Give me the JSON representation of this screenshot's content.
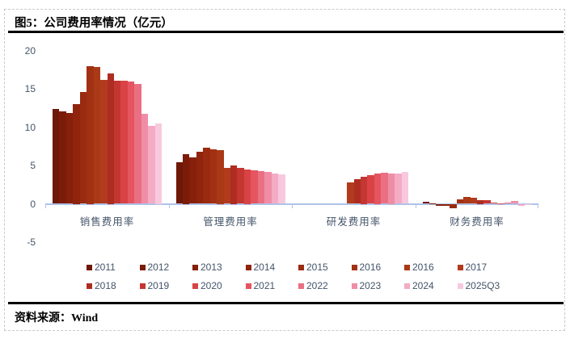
{
  "page": {
    "title": "图5：公司费用率情况（亿元）",
    "source_label": "资料来源：Wind"
  },
  "colors": {
    "axis_line": "#AFC2E8",
    "axis_text": "#44546A",
    "title_text": "#000000",
    "rule": "#000000"
  },
  "chart_data": {
    "type": "bar",
    "title": "图5：公司费用率情况（亿元）",
    "unit": "亿元",
    "grid": false,
    "legend_position": "bottom",
    "y_axis": {
      "min": -5,
      "max": 20,
      "ticks": [
        20,
        15,
        10,
        5,
        0,
        -5
      ]
    },
    "categories": [
      "销售费用率",
      "管理费用率",
      "研发费用率",
      "财务费用率"
    ],
    "series": [
      {
        "name": "2011",
        "color": "#6E1807",
        "values": [
          12.4,
          5.4,
          null,
          0.3
        ]
      },
      {
        "name": "2012",
        "color": "#7B1C09",
        "values": [
          12.1,
          6.5,
          null,
          0.05
        ]
      },
      {
        "name": "2013",
        "color": "#861F0B",
        "values": [
          11.8,
          6.1,
          null,
          -0.3
        ]
      },
      {
        "name": "2014",
        "color": "#90240D",
        "values": [
          13.0,
          6.8,
          null,
          -0.3
        ]
      },
      {
        "name": "2015",
        "color": "#9A2A10",
        "values": [
          14.6,
          7.3,
          null,
          -0.55
        ]
      },
      {
        "name": "2016",
        "color": "#A23113",
        "values": [
          18.0,
          7.1,
          null,
          0.6
        ]
      },
      {
        "name": "2016",
        "color": "#A93917",
        "values": [
          17.8,
          7.0,
          null,
          0.9
        ]
      },
      {
        "name": "2017",
        "color": "#B23B1D",
        "values": [
          16.2,
          4.7,
          2.8,
          0.8
        ]
      },
      {
        "name": "2018",
        "color": "#AD2D20",
        "values": [
          17.0,
          5.0,
          3.2,
          0.5
        ]
      },
      {
        "name": "2019",
        "color": "#C43631",
        "values": [
          16.1,
          4.7,
          3.5,
          0.45
        ]
      },
      {
        "name": "2020",
        "color": "#D94345",
        "values": [
          16.1,
          4.5,
          3.7,
          0.15
        ]
      },
      {
        "name": "2021",
        "color": "#E45560",
        "values": [
          15.9,
          4.4,
          4.0,
          0.05
        ]
      },
      {
        "name": "2022",
        "color": "#EA6F82",
        "values": [
          15.6,
          4.3,
          4.1,
          0.2
        ]
      },
      {
        "name": "2023",
        "color": "#F08DA6",
        "values": [
          11.7,
          4.2,
          4.0,
          0.35
        ]
      },
      {
        "name": "2024",
        "color": "#F4ABC4",
        "values": [
          10.2,
          3.9,
          3.9,
          -0.25
        ]
      },
      {
        "name": "2025Q3",
        "color": "#F8C9DE",
        "values": [
          10.5,
          3.8,
          4.2,
          -0.05
        ]
      }
    ]
  }
}
